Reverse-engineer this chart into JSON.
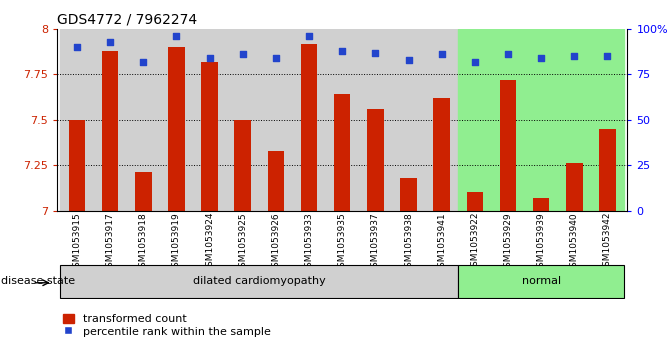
{
  "title": "GDS4772 / 7962274",
  "samples": [
    "GSM1053915",
    "GSM1053917",
    "GSM1053918",
    "GSM1053919",
    "GSM1053924",
    "GSM1053925",
    "GSM1053926",
    "GSM1053933",
    "GSM1053935",
    "GSM1053937",
    "GSM1053938",
    "GSM1053941",
    "GSM1053922",
    "GSM1053929",
    "GSM1053939",
    "GSM1053940",
    "GSM1053942"
  ],
  "bar_values": [
    7.5,
    7.88,
    7.21,
    7.9,
    7.82,
    7.5,
    7.33,
    7.92,
    7.64,
    7.56,
    7.18,
    7.62,
    7.1,
    7.72,
    7.07,
    7.26,
    7.45
  ],
  "percentile_values": [
    90,
    93,
    82,
    96,
    84,
    86,
    84,
    96,
    88,
    87,
    83,
    86,
    82,
    86,
    84,
    85,
    85
  ],
  "disease_groups": [
    {
      "label": "dilated cardiomyopathy",
      "start": 0,
      "end": 11
    },
    {
      "label": "normal",
      "start": 12,
      "end": 16
    }
  ],
  "ylim_left": [
    7.0,
    8.0
  ],
  "ylim_right": [
    0,
    100
  ],
  "yticks_left": [
    7.0,
    7.25,
    7.5,
    7.75,
    8.0
  ],
  "ytick_labels_left": [
    "7",
    "7.25",
    "7.5",
    "7.75",
    "8"
  ],
  "yticks_right": [
    0,
    25,
    50,
    75,
    100
  ],
  "ytick_labels_right": [
    "0",
    "25",
    "50",
    "75",
    "100%"
  ],
  "hlines": [
    7.25,
    7.5,
    7.75
  ],
  "bar_color": "#cc2200",
  "dot_color": "#2244cc",
  "bg_color_dilated": "#d0d0d0",
  "bg_color_normal": "#90ee90",
  "legend_bar_label": "transformed count",
  "legend_dot_label": "percentile rank within the sample",
  "disease_state_label": "disease state",
  "title_fontsize": 10,
  "tick_fontsize": 8,
  "bar_width": 0.5
}
